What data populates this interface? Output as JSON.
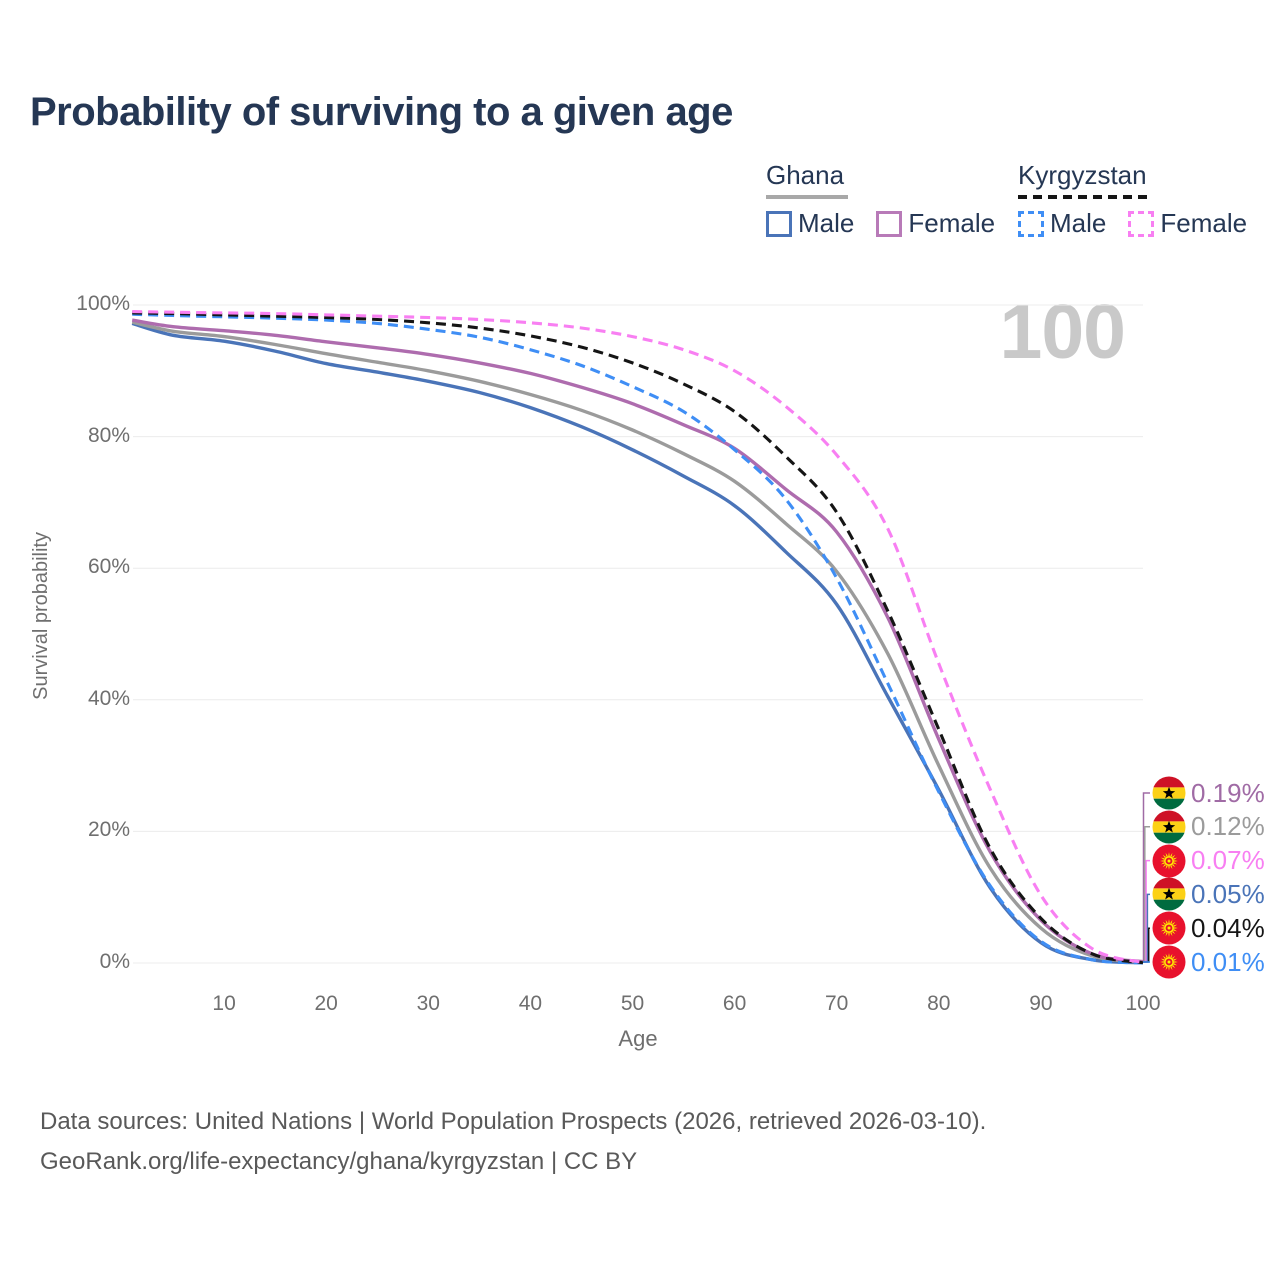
{
  "header": {
    "title": "Probability of surviving to a given age"
  },
  "legend": {
    "groups": [
      {
        "name": "Ghana",
        "line_style": "solid",
        "underline_color": "#a8a8a8",
        "items": [
          {
            "label": "Male",
            "color": "#4a74b8",
            "dashed": false
          },
          {
            "label": "Female",
            "color": "#b87ab8",
            "dashed": false
          }
        ]
      },
      {
        "name": "Kyrgyzstan",
        "line_style": "dashed",
        "underline_color": "#151515",
        "items": [
          {
            "label": "Male",
            "color": "#3f8ef5",
            "dashed": true
          },
          {
            "label": "Female",
            "color": "#f87ff2",
            "dashed": true
          }
        ]
      }
    ]
  },
  "watermark": "100",
  "chart_data": {
    "type": "line",
    "title": "Probability of surviving to a given age",
    "xlabel": "Age",
    "ylabel": "Survival probability",
    "xlim": [
      0,
      100
    ],
    "ylim": [
      0,
      100
    ],
    "grid": "horizontal",
    "legend_position": "top-right",
    "x_ticks": [
      10,
      20,
      30,
      40,
      50,
      60,
      70,
      80,
      90,
      100
    ],
    "y_ticks": [
      {
        "value": 0,
        "label": "0%"
      },
      {
        "value": 20,
        "label": "20%"
      },
      {
        "value": 40,
        "label": "40%"
      },
      {
        "value": 60,
        "label": "60%"
      },
      {
        "value": 80,
        "label": "80%"
      },
      {
        "value": 100,
        "label": "100%"
      }
    ],
    "ages": [
      1,
      5,
      10,
      15,
      20,
      25,
      30,
      35,
      40,
      45,
      50,
      55,
      60,
      65,
      70,
      75,
      80,
      85,
      90,
      95,
      100
    ],
    "series": [
      {
        "id": "ghana-male",
        "country": "Ghana",
        "sex": "Male",
        "color": "#4a74b8",
        "dashed": false,
        "end_label": "0.05%",
        "values": [
          97.2,
          95.4,
          94.5,
          93.0,
          91.1,
          89.8,
          88.4,
          86.7,
          84.4,
          81.5,
          78.0,
          74.0,
          69.5,
          62.5,
          54.5,
          40.5,
          26.3,
          11.5,
          3.1,
          0.5,
          0.05
        ]
      },
      {
        "id": "ghana-all",
        "country": "Ghana",
        "sex": "Both",
        "color": "#9b9b9b",
        "dashed": false,
        "end_label": "0.12%",
        "values": [
          97.4,
          96.0,
          95.2,
          94.0,
          92.6,
          91.3,
          90.0,
          88.4,
          86.4,
          84.0,
          81.0,
          77.4,
          73.2,
          66.8,
          59.5,
          47.0,
          30.0,
          14.5,
          5.3,
          1.1,
          0.12
        ]
      },
      {
        "id": "ghana-female",
        "country": "Ghana",
        "sex": "Female",
        "color": "#ae6cae",
        "dashed": false,
        "end_label": "0.19%",
        "values": [
          97.7,
          96.7,
          96.1,
          95.4,
          94.4,
          93.5,
          92.5,
          91.2,
          89.6,
          87.5,
          85.0,
          81.8,
          78.2,
          72.0,
          65.5,
          52.5,
          34.0,
          17.0,
          6.5,
          1.4,
          0.19
        ]
      },
      {
        "id": "kyrgyzstan-male",
        "country": "Kyrgyzstan",
        "sex": "Male",
        "color": "#3f8ef5",
        "dashed": true,
        "end_label": "0.01%",
        "values": [
          98.6,
          98.4,
          98.2,
          98.0,
          97.7,
          97.2,
          96.3,
          95.1,
          93.2,
          90.8,
          87.6,
          83.8,
          78.0,
          70.5,
          58.5,
          42.5,
          26.0,
          11.8,
          3.3,
          0.5,
          0.01
        ]
      },
      {
        "id": "kyrgyzstan-all",
        "country": "Kyrgyzstan",
        "sex": "Both",
        "color": "#151515",
        "dashed": true,
        "end_label": "0.04%",
        "values": [
          98.8,
          98.7,
          98.5,
          98.3,
          98.1,
          97.8,
          97.3,
          96.5,
          95.3,
          93.6,
          91.2,
          88.0,
          83.8,
          77.0,
          68.5,
          53.5,
          35.5,
          17.5,
          6.8,
          1.4,
          0.04
        ]
      },
      {
        "id": "kyrgyzstan-female",
        "country": "Kyrgyzstan",
        "sex": "Female",
        "color": "#f87ff2",
        "dashed": true,
        "end_label": "0.07%",
        "values": [
          99.0,
          98.9,
          98.8,
          98.7,
          98.5,
          98.3,
          98.1,
          97.8,
          97.3,
          96.5,
          95.2,
          93.2,
          90.0,
          84.6,
          77.2,
          66.0,
          45.5,
          26.5,
          10.3,
          2.2,
          0.07
        ]
      }
    ]
  },
  "end_labels": [
    {
      "flag": "ghana",
      "value": "0.19%",
      "color": "#a06ba5",
      "series": "ghana-female"
    },
    {
      "flag": "ghana",
      "value": "0.12%",
      "color": "#9b9b9b",
      "series": "ghana-all"
    },
    {
      "flag": "kyrgyzstan",
      "value": "0.07%",
      "color": "#f87ff2",
      "series": "kyrgyzstan-female"
    },
    {
      "flag": "ghana",
      "value": "0.05%",
      "color": "#4a74b8",
      "series": "ghana-male"
    },
    {
      "flag": "kyrgyzstan",
      "value": "0.04%",
      "color": "#151515",
      "series": "kyrgyzstan-all"
    },
    {
      "flag": "kyrgyzstan",
      "value": "0.01%",
      "color": "#3f8ef5",
      "series": "kyrgyzstan-male"
    }
  ],
  "flag_colors": {
    "ghana_red": "#ce1126",
    "ghana_gold": "#fcd116",
    "ghana_green": "#006b3f",
    "ghana_star": "#000000",
    "kyrgyzstan_red": "#e8112d",
    "kyrgyzstan_yellow": "#ffef00"
  },
  "footer": {
    "line1": "Data sources: United Nations | World Population Prospects (2026, retrieved 2026-03-10).",
    "line2": "GeoRank.org/life-expectancy/ghana/kyrgyzstan | CC BY"
  }
}
